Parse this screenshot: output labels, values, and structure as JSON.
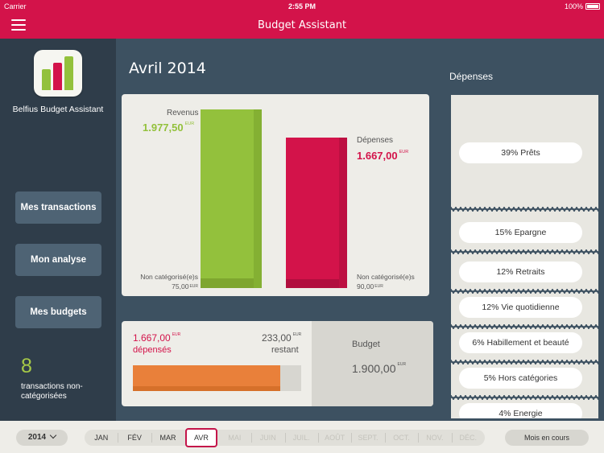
{
  "status": {
    "carrier": "Carrier",
    "time": "2:55 PM",
    "battery": "100%"
  },
  "nav": {
    "title": "Budget Assistant"
  },
  "sidebar": {
    "app_name": "Belfius Budget Assistant",
    "buttons": [
      "Mes transactions",
      "Mon analyse",
      "Mes budgets"
    ],
    "uncat_count": "8",
    "uncat_text": "transactions non-catégorisées"
  },
  "main": {
    "month_title": "Avril 2014",
    "revenus": {
      "label": "Revenus",
      "value": "1.977,50",
      "currency": "EUR",
      "uncat_label": "Non catégorisé(e)s",
      "uncat_value": "75,00",
      "uncat_currency": "EUR"
    },
    "depenses": {
      "label": "Dépenses",
      "value": "1.667,00",
      "currency": "EUR",
      "uncat_label": "Non catégorisé(e)s",
      "uncat_value": "90,00",
      "uncat_currency": "EUR"
    },
    "colors": {
      "revenus": "#93c13c",
      "depenses": "#d3134a"
    }
  },
  "budget": {
    "spent_value": "1.667,00",
    "spent_currency": "EUR",
    "spent_label": "dépensés",
    "remaining_value": "233,00",
    "remaining_currency": "EUR",
    "remaining_label": "restant",
    "label": "Budget",
    "total_value": "1.900,00",
    "total_currency": "EUR",
    "progress_fraction": 0.877
  },
  "depenses_panel": {
    "title": "Dépenses",
    "items": [
      "39% Prêts",
      "15% Epargne",
      "12% Retraits",
      "12% Vie quotidienne",
      "6% Habillement et beauté",
      "5% Hors catégories",
      "4% Energie"
    ]
  },
  "timeline": {
    "year": "2014",
    "months": [
      "JAN",
      "FÉV",
      "MAR",
      "AVR",
      "MAI",
      "JUIN",
      "JUIL.",
      "AOÛT",
      "SEPT.",
      "OCT.",
      "NOV.",
      "DÉC."
    ],
    "selected_index": 3,
    "current_button": "Mois en cours"
  }
}
